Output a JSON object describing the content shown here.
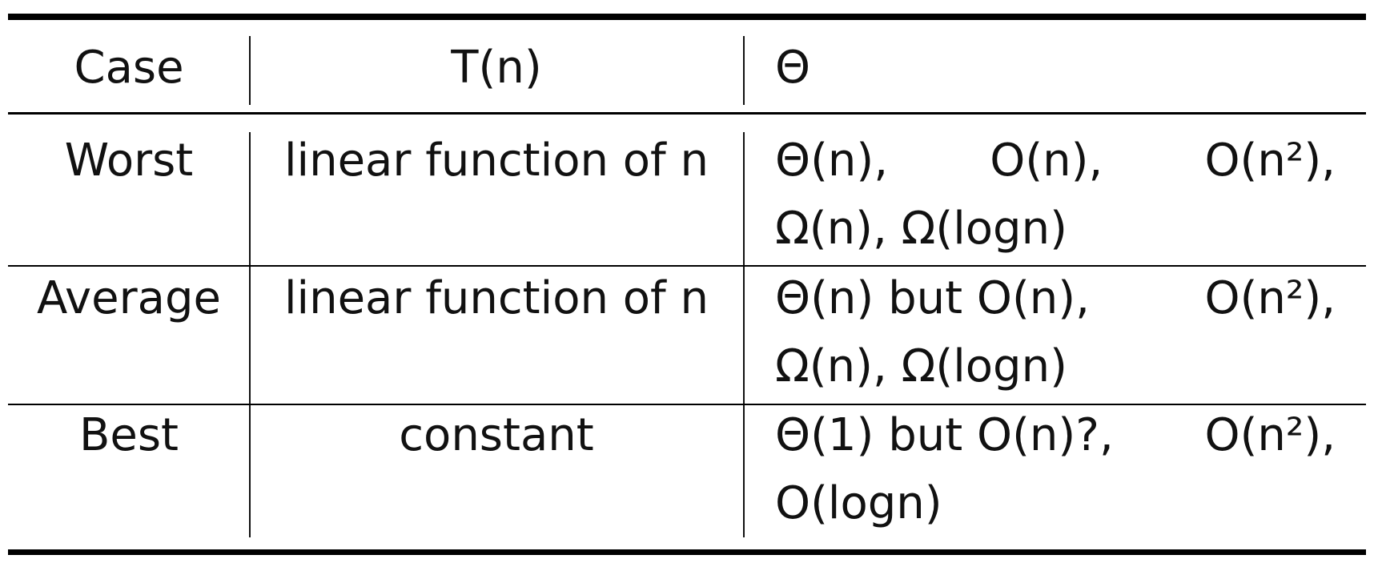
{
  "table": {
    "headers": [
      "Case",
      "T(n)",
      "Θ"
    ],
    "rows": [
      {
        "case": "Worst",
        "tn": "linear function of n",
        "theta": {
          "line1_parts": [
            "Θ(n),",
            "O(n),",
            "O(n²),"
          ],
          "line2": "Ω(n), Ω(logn)"
        }
      },
      {
        "case": "Average",
        "tn": "linear function of n",
        "theta": {
          "line1_parts": [
            "Θ(n) but O(n),",
            "O(n²),"
          ],
          "line2": "Ω(n), Ω(logn)"
        }
      },
      {
        "case": "Best",
        "tn": "constant",
        "theta": {
          "line1_parts": [
            "Θ(1) but O(n)?,",
            "O(n²),"
          ],
          "line2": "O(logn)"
        }
      }
    ]
  }
}
